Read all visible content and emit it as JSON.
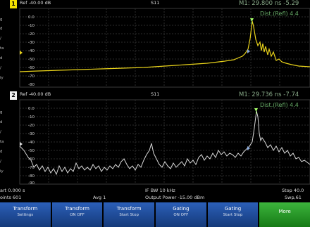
{
  "top_trace": {
    "number": "1",
    "ref": "Ref -40.00 dB",
    "param": "S11",
    "marker": "M1:  29.800 ns  -5.29",
    "marker_sub": "Dist.(Refl) 4.4",
    "y_ticks": [
      "0.0",
      "-10",
      "-20",
      "-30",
      "-40",
      "-50",
      "-60",
      "-70",
      "-80"
    ],
    "left_labels": [
      "g",
      "d",
      "/",
      "ta",
      "d",
      "/",
      "iy"
    ],
    "trace_color": "#e8d21a"
  },
  "bottom_trace": {
    "number": "2",
    "ref": "Ref -40.00 dB",
    "param": "S11",
    "marker": "M1:  29.736 ns  -7.74",
    "marker_sub": "Dist.(Refl) 4.4",
    "y_ticks": [
      "0.0",
      "-10",
      "-20",
      "-30",
      "-40",
      "-50",
      "-60",
      "-70",
      "-80",
      "-90"
    ],
    "left_labels": [
      "g",
      "d",
      "/",
      "ta",
      "d",
      "/",
      "iy"
    ],
    "trace_color": "#d8d8d8"
  },
  "status": {
    "start": "art 0.000 s",
    "points": "oints 601",
    "avg": "Avg  1",
    "if_bw": "IF BW 10 kHz",
    "output_power": "Output Power -15.00 dBm",
    "stop": "Stop 40.0",
    "sweep": "Swp,61"
  },
  "softkeys": [
    {
      "label": "Transform",
      "sub": "Settings"
    },
    {
      "label": "Transform",
      "sub": "ON OFF"
    },
    {
      "label": "Transform",
      "sub": "Start Stop"
    },
    {
      "label": "Gating",
      "sub": "ON OFF"
    },
    {
      "label": "Gating",
      "sub": "Start Stop"
    },
    {
      "label": "More",
      "sub": ""
    }
  ],
  "colors": {
    "accent_green": "#2aa02a",
    "softkey_blue": "#1f4fa0",
    "marker_green": "#a6ff6a"
  }
}
